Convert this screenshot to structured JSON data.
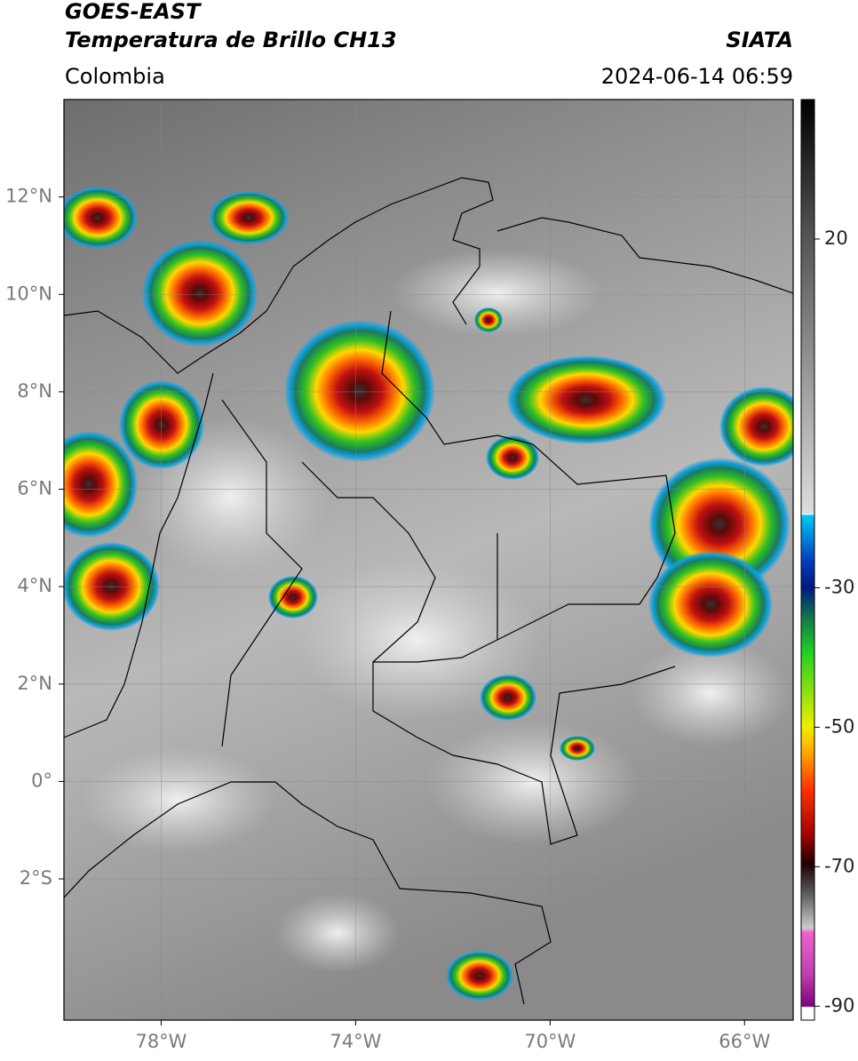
{
  "header": {
    "title": "GOES-EAST",
    "subtitle": "Temperatura de Brillo CH13",
    "source": "SIATA",
    "region": "Colombia",
    "datetime": "2024-06-14 06:59"
  },
  "map": {
    "xlim": [
      -80,
      -65
    ],
    "ylim": [
      -4.9,
      14
    ],
    "xticks": [
      {
        "value": -78,
        "label": "78°W"
      },
      {
        "value": -74,
        "label": "74°W"
      },
      {
        "value": -70,
        "label": "70°W"
      },
      {
        "value": -66,
        "label": "66°W"
      }
    ],
    "yticks": [
      {
        "value": 12,
        "label": "12°N"
      },
      {
        "value": 10,
        "label": "10°N"
      },
      {
        "value": 8,
        "label": "8°N"
      },
      {
        "value": 6,
        "label": "6°N"
      },
      {
        "value": 4,
        "label": "4°N"
      },
      {
        "value": 2,
        "label": "2°N"
      },
      {
        "value": 0,
        "label": "0°"
      },
      {
        "value": -2,
        "label": "2°S"
      }
    ],
    "grid": true
  },
  "colorbar": {
    "lim": [
      -92,
      40
    ],
    "ticks": [
      20,
      -30,
      -50,
      -70,
      -90
    ]
  }
}
